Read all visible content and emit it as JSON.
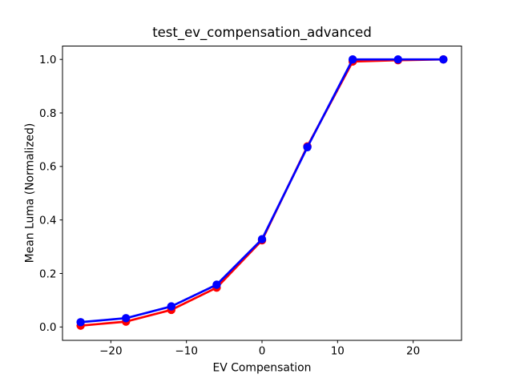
{
  "figure": {
    "background": "#ffffff",
    "frame_color": "#000000",
    "tick_color": "#000000"
  },
  "chart_data": {
    "type": "line",
    "title": "test_ev_compensation_advanced",
    "xlabel": "EV Compensation",
    "ylabel": "Mean Luma (Normalized)",
    "x": [
      -24,
      -18,
      -12,
      -6,
      0,
      6,
      12,
      18,
      24
    ],
    "series": [
      {
        "name": "red-series",
        "color": "#ff0000",
        "marker": "circle",
        "values": [
          0.005,
          0.02,
          0.064,
          0.147,
          0.324,
          0.675,
          0.992,
          0.997,
          1.0
        ]
      },
      {
        "name": "blue-series",
        "color": "#0000ff",
        "marker": "circle",
        "values": [
          0.018,
          0.033,
          0.077,
          0.158,
          0.328,
          0.672,
          1.0,
          1.0,
          1.0
        ]
      }
    ],
    "xticks": [
      -20,
      -10,
      0,
      10,
      20
    ],
    "xtick_labels": [
      "−20",
      "−10",
      "0",
      "10",
      "20"
    ],
    "yticks": [
      0.0,
      0.2,
      0.4,
      0.6,
      0.8,
      1.0
    ],
    "ytick_labels": [
      "0.0",
      "0.2",
      "0.4",
      "0.6",
      "0.8",
      "1.0"
    ],
    "xlim": [
      -26.4,
      26.4
    ],
    "ylim": [
      -0.05,
      1.05
    ],
    "grid": false,
    "legend": "none"
  }
}
